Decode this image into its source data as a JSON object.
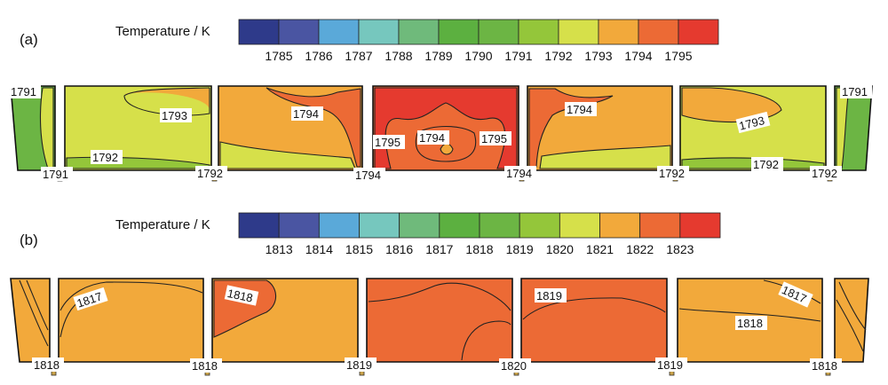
{
  "chart_data": [
    {
      "type": "heatmap",
      "panel_label": "(a)",
      "colorbar": {
        "title": "Temperature / K",
        "ticks": [
          "1785",
          "1786",
          "1787",
          "1788",
          "1789",
          "1790",
          "1791",
          "1792",
          "1793",
          "1794",
          "1795"
        ],
        "colors": [
          "#2e3a8a",
          "#4a55a2",
          "#5aa9d9",
          "#76c7be",
          "#6fba7b",
          "#5cb040",
          "#6cb544",
          "#94c63a",
          "#d6e04a",
          "#f2a93b",
          "#ec6a35",
          "#e53a2f"
        ]
      },
      "contour_labels": [
        "1791",
        "1793",
        "1794",
        "1795",
        "1794",
        "1795",
        "1794",
        "1793",
        "1791",
        "1791",
        "1792",
        "1792",
        "1794",
        "1794",
        "1792",
        "1792",
        "1792"
      ]
    },
    {
      "type": "heatmap",
      "panel_label": "(b)",
      "colorbar": {
        "title": "Temperature / K",
        "ticks": [
          "1813",
          "1814",
          "1815",
          "1816",
          "1817",
          "1818",
          "1819",
          "1820",
          "1821",
          "1822",
          "1823"
        ],
        "colors": [
          "#2e3a8a",
          "#4a55a2",
          "#5aa9d9",
          "#76c7be",
          "#6fba7b",
          "#5cb040",
          "#6cb544",
          "#94c63a",
          "#d6e04a",
          "#f2a93b",
          "#ec6a35",
          "#e53a2f"
        ]
      },
      "contour_labels": [
        "1817",
        "1818",
        "1819",
        "1817",
        "1818",
        "1818",
        "1818",
        "1819",
        "1820",
        "1819",
        "1818"
      ]
    }
  ]
}
